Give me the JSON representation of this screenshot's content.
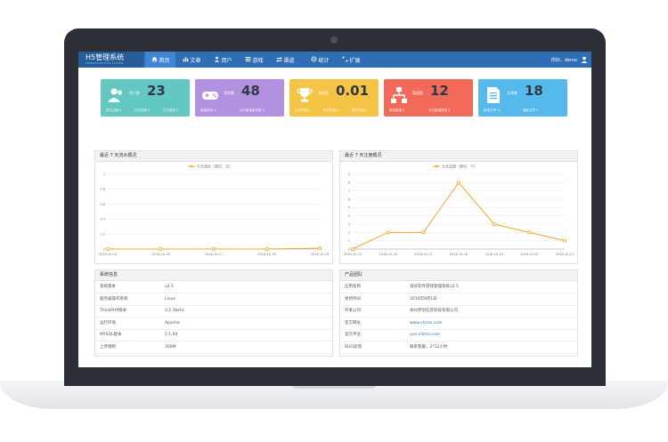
{
  "app": {
    "title": "H5管理系统",
    "subtitle": "ADMINISTRATION SYSTEM"
  },
  "nav": [
    {
      "label": "首页",
      "icon": "home-icon",
      "active": true
    },
    {
      "label": "文章",
      "icon": "bar-chart-icon"
    },
    {
      "label": "用户",
      "icon": "users-icon"
    },
    {
      "label": "游戏",
      "icon": "list-icon"
    },
    {
      "label": "渠道",
      "icon": "exchange-icon"
    },
    {
      "label": "统计",
      "icon": "gear-icon"
    },
    {
      "label": "扩展",
      "icon": "expand-icon"
    }
  ],
  "user": {
    "name": "你好，demo",
    "icon": "user-icon"
  },
  "cards": [
    {
      "label": "用户数",
      "value": "23",
      "color": "#63c7c2",
      "icon": "users-icon",
      "footer": [
        "昨日注册 0",
        "今日注册 0",
        "今日登录 0"
      ]
    },
    {
      "label": "游戏数",
      "value": "48",
      "color": "#b291e0",
      "icon": "gamepad-icon",
      "footer": [
        "新增游戏 0",
        "今日新增游戏数 0"
      ]
    },
    {
      "label": "充值数",
      "value": "0.01",
      "color": "#f5c445",
      "icon": "trophy-icon",
      "footer": [
        "今日充值 0",
        "昨日充值 0",
        "累计充值 0"
      ]
    },
    {
      "label": "渠道数",
      "value": "12",
      "color": "#f36a5a",
      "icon": "sitemap-icon",
      "footer": [
        "新增渠道 0",
        "今日新增渠道 0"
      ]
    },
    {
      "label": "文章数",
      "value": "18",
      "color": "#55b9ec",
      "icon": "document-icon",
      "footer": [
        "新增文章 11",
        "最新文章 0"
      ]
    }
  ],
  "charts": [
    {
      "panel_title": "最近 7 天流水概况"
    },
    {
      "panel_title": "最近 7 天注册概况"
    }
  ],
  "chart_data": [
    {
      "type": "line",
      "title": "",
      "series": [
        {
          "name": "七天流水（单位：元）",
          "values": [
            0,
            0,
            0,
            0,
            0.01
          ]
        }
      ],
      "x": [
        "2016-10-15",
        "2016-10-16",
        "2016-10-17",
        "2016-10-18",
        "2016-10-19"
      ],
      "ylim": [
        0,
        1
      ],
      "yticks": [
        "0",
        "0.2",
        "0.4",
        "0.6",
        "0.8",
        "1"
      ],
      "color": "#f5a623",
      "grid": true,
      "legend": "top-center"
    },
    {
      "type": "line",
      "title": "",
      "series": [
        {
          "name": "七天注册（单位：个）",
          "values": [
            0,
            2,
            2,
            8,
            3,
            2,
            1
          ]
        }
      ],
      "x": [
        "2016-10-15",
        "2016-10-16",
        "2016-10-17",
        "2016-10-18",
        "2016-10-19",
        "2016-10-20",
        "2016-10-21"
      ],
      "ylim": [
        0,
        9
      ],
      "yticks": [
        "0",
        "1",
        "2",
        "3",
        "4",
        "5",
        "6",
        "7",
        "8",
        "9"
      ],
      "color": "#f5a623",
      "grid": true,
      "legend": "top-center"
    }
  ],
  "sysinfo": {
    "title": "系统信息",
    "rows": [
      {
        "k": "系统版本",
        "v": "v2.5"
      },
      {
        "k": "服务器操作系统",
        "v": "Linux"
      },
      {
        "k": "ThinkPHP版本",
        "v": "3.2.3beta"
      },
      {
        "k": "运行环境",
        "v": "Apache"
      },
      {
        "k": "MYSQL版本",
        "v": "5.1.69"
      },
      {
        "k": "上传限制",
        "v": "300M"
      }
    ]
  },
  "team": {
    "title": "产品团队",
    "rows": [
      {
        "k": "应用名称",
        "v": "溪谷软件游戏管理系统v2.5",
        "link": false
      },
      {
        "k": "更新时间",
        "v": "2016年8月1日",
        "link": false
      },
      {
        "k": "开发公司",
        "v": "徐州梦创信息科技有限公司",
        "link": false
      },
      {
        "k": "官方网址",
        "v": "www.vlcms.com",
        "link": true
      },
      {
        "k": "官方平台",
        "v": "yun.vlcms.com",
        "link": true
      },
      {
        "k": "BUG反馈",
        "v": "联系客服，2*12小时",
        "link": false
      }
    ]
  }
}
